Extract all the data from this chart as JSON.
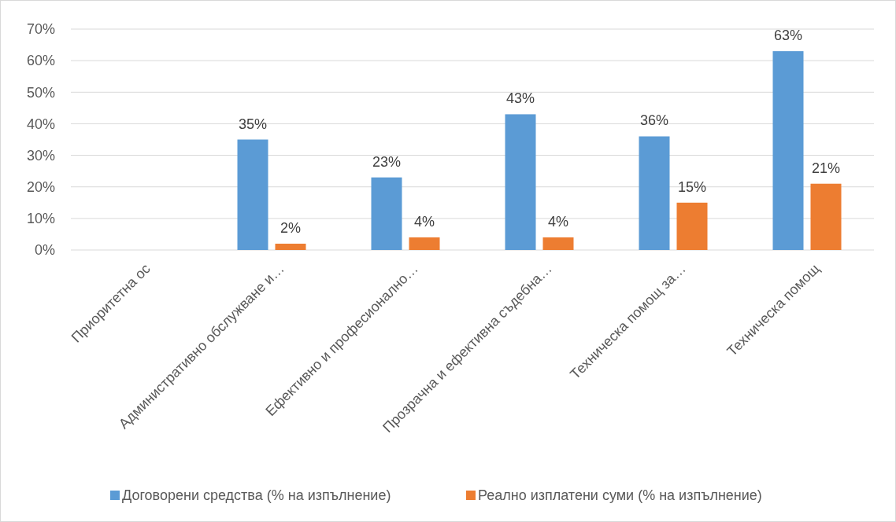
{
  "chart_data": {
    "type": "bar",
    "categories": [
      "Приоритетна ос",
      "Административно обслужване и…",
      "Ефективно и професионално…",
      "Прозрачна и ефективна съдебна…",
      "Техническа помощ за…",
      "Техническа помощ"
    ],
    "series": [
      {
        "name": "Договорени средства (% на изпълнение)",
        "color": "#5b9bd5",
        "values": [
          null,
          35,
          23,
          43,
          36,
          63
        ],
        "value_labels": [
          null,
          "35%",
          "23%",
          "43%",
          "36%",
          "63%"
        ]
      },
      {
        "name": "Реално изплатени суми (% на изпълнение)",
        "color": "#ed7d31",
        "values": [
          null,
          2,
          4,
          4,
          15,
          21
        ],
        "value_labels": [
          null,
          "2%",
          "4%",
          "4%",
          "15%",
          "21%"
        ]
      }
    ],
    "ylim": [
      0,
      70
    ],
    "yticks": [
      {
        "value": 0,
        "label": "0%"
      },
      {
        "value": 10,
        "label": "10%"
      },
      {
        "value": 20,
        "label": "20%"
      },
      {
        "value": 30,
        "label": "30%"
      },
      {
        "value": 40,
        "label": "40%"
      },
      {
        "value": 50,
        "label": "50%"
      },
      {
        "value": 60,
        "label": "60%"
      },
      {
        "value": 70,
        "label": "70%"
      }
    ],
    "grid": "y",
    "legend": "bottom"
  }
}
